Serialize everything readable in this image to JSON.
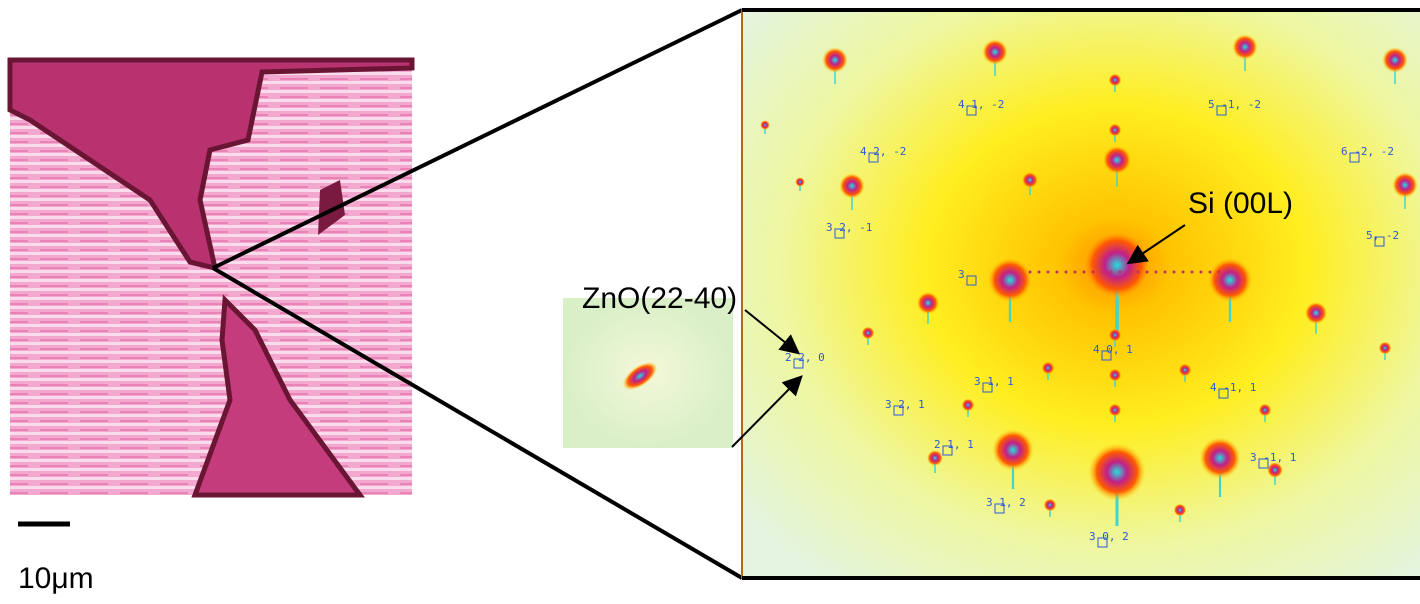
{
  "scale_bar": {
    "label": "10μm"
  },
  "inset": {
    "label": "ZnO(22-40)"
  },
  "substrate": {
    "label": "Si (00L)"
  },
  "indices": [
    {
      "label": "4 1, -2"
    },
    {
      "label": "5 -1, -2"
    },
    {
      "label": "4 2, -2"
    },
    {
      "label": "6 -2, -2"
    },
    {
      "label": "3 2, -1"
    },
    {
      "label": "5, -2"
    },
    {
      "label": "3"
    },
    {
      "label": "2 2, 0"
    },
    {
      "label": "4 0, 1"
    },
    {
      "label": "3 1, 1"
    },
    {
      "label": "4 -1, 1"
    },
    {
      "label": "3 2, 1"
    },
    {
      "label": "2 1, 1"
    },
    {
      "label": "3 -1, 1"
    },
    {
      "label": "3 1, 2"
    },
    {
      "label": "3 0, 2"
    }
  ]
}
